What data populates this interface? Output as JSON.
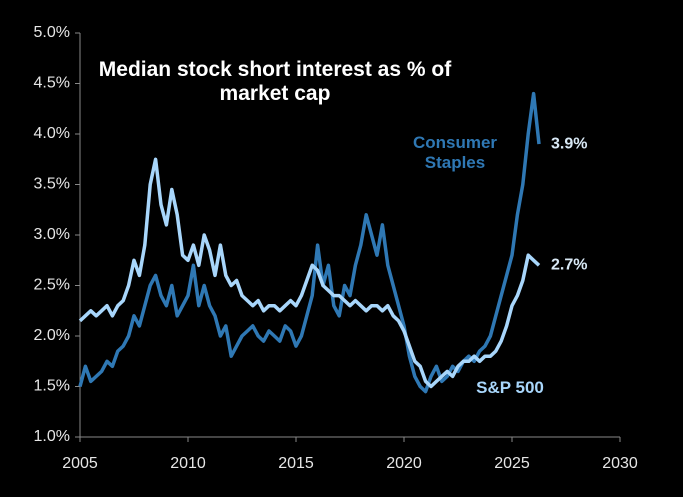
{
  "chart_data": {
    "type": "line",
    "title": "Median stock short interest as % of market cap",
    "x": [
      2005,
      2005.25,
      2005.5,
      2005.75,
      2006,
      2006.25,
      2006.5,
      2006.75,
      2007,
      2007.25,
      2007.5,
      2007.75,
      2008,
      2008.25,
      2008.5,
      2008.75,
      2009,
      2009.25,
      2009.5,
      2009.75,
      2010,
      2010.25,
      2010.5,
      2010.75,
      2011,
      2011.25,
      2011.5,
      2011.75,
      2012,
      2012.25,
      2012.5,
      2012.75,
      2013,
      2013.25,
      2013.5,
      2013.75,
      2014,
      2014.25,
      2014.5,
      2014.75,
      2015,
      2015.25,
      2015.5,
      2015.75,
      2016,
      2016.25,
      2016.5,
      2016.75,
      2017,
      2017.25,
      2017.5,
      2017.75,
      2018,
      2018.25,
      2018.5,
      2018.75,
      2019,
      2019.25,
      2019.5,
      2019.75,
      2020,
      2020.25,
      2020.5,
      2020.75,
      2021,
      2021.25,
      2021.5,
      2021.75,
      2022,
      2022.25,
      2022.5,
      2022.75,
      2023,
      2023.25,
      2023.5,
      2023.75,
      2024,
      2024.25,
      2024.5,
      2024.75,
      2025,
      2025.25,
      2025.5,
      2025.75,
      2026,
      2026.25
    ],
    "series": [
      {
        "name": "S&P 500",
        "color": "#a8d6fb",
        "values": [
          2.15,
          2.2,
          2.25,
          2.2,
          2.25,
          2.3,
          2.2,
          2.3,
          2.35,
          2.5,
          2.75,
          2.6,
          2.9,
          3.5,
          3.75,
          3.3,
          3.1,
          3.45,
          3.2,
          2.8,
          2.75,
          2.9,
          2.7,
          3.0,
          2.85,
          2.6,
          2.9,
          2.6,
          2.5,
          2.55,
          2.4,
          2.35,
          2.3,
          2.35,
          2.25,
          2.3,
          2.3,
          2.25,
          2.3,
          2.35,
          2.3,
          2.4,
          2.55,
          2.7,
          2.65,
          2.5,
          2.45,
          2.4,
          2.4,
          2.35,
          2.3,
          2.35,
          2.3,
          2.25,
          2.3,
          2.3,
          2.25,
          2.3,
          2.2,
          2.15,
          2.05,
          1.9,
          1.75,
          1.7,
          1.55,
          1.5,
          1.55,
          1.6,
          1.65,
          1.6,
          1.7,
          1.75,
          1.75,
          1.8,
          1.75,
          1.8,
          1.8,
          1.85,
          1.95,
          2.1,
          2.3,
          2.4,
          2.55,
          2.8,
          2.75,
          2.7
        ]
      },
      {
        "name": "Consumer Staples",
        "color": "#2f78b4",
        "values": [
          1.5,
          1.7,
          1.55,
          1.6,
          1.65,
          1.75,
          1.7,
          1.85,
          1.9,
          2.0,
          2.2,
          2.1,
          2.3,
          2.5,
          2.6,
          2.4,
          2.3,
          2.5,
          2.2,
          2.3,
          2.4,
          2.7,
          2.3,
          2.5,
          2.3,
          2.2,
          2.0,
          2.1,
          1.8,
          1.9,
          2.0,
          2.05,
          2.1,
          2.0,
          1.95,
          2.05,
          2.0,
          1.95,
          2.1,
          2.05,
          1.9,
          2.0,
          2.2,
          2.4,
          2.9,
          2.5,
          2.7,
          2.3,
          2.2,
          2.5,
          2.4,
          2.7,
          2.9,
          3.2,
          3.0,
          2.8,
          3.1,
          2.7,
          2.5,
          2.3,
          2.1,
          1.8,
          1.6,
          1.5,
          1.45,
          1.6,
          1.7,
          1.55,
          1.6,
          1.7,
          1.65,
          1.75,
          1.8,
          1.75,
          1.85,
          1.9,
          2.0,
          2.2,
          2.4,
          2.6,
          2.8,
          3.2,
          3.5,
          4.0,
          4.4,
          3.9
        ]
      }
    ],
    "annotations": [
      {
        "text": "3.9%",
        "value": 3.9
      },
      {
        "text": "2.7%",
        "value": 2.7
      }
    ],
    "xlim": [
      2005,
      2030
    ],
    "xticks": [
      2005,
      2010,
      2015,
      2020,
      2025,
      2030
    ],
    "ylim": [
      1.0,
      5.0
    ],
    "yticks": [
      {
        "value": 1.0,
        "label": "1.0%"
      },
      {
        "value": 1.5,
        "label": "1.5%"
      },
      {
        "value": 2.0,
        "label": "2.0%"
      },
      {
        "value": 2.5,
        "label": "2.5%"
      },
      {
        "value": 3.0,
        "label": "3.0%"
      },
      {
        "value": 3.5,
        "label": "3.5%"
      },
      {
        "value": 4.0,
        "label": "4.0%"
      },
      {
        "value": 4.5,
        "label": "4.5%"
      },
      {
        "value": 5.0,
        "label": "5.0%"
      }
    ],
    "grid": false
  }
}
